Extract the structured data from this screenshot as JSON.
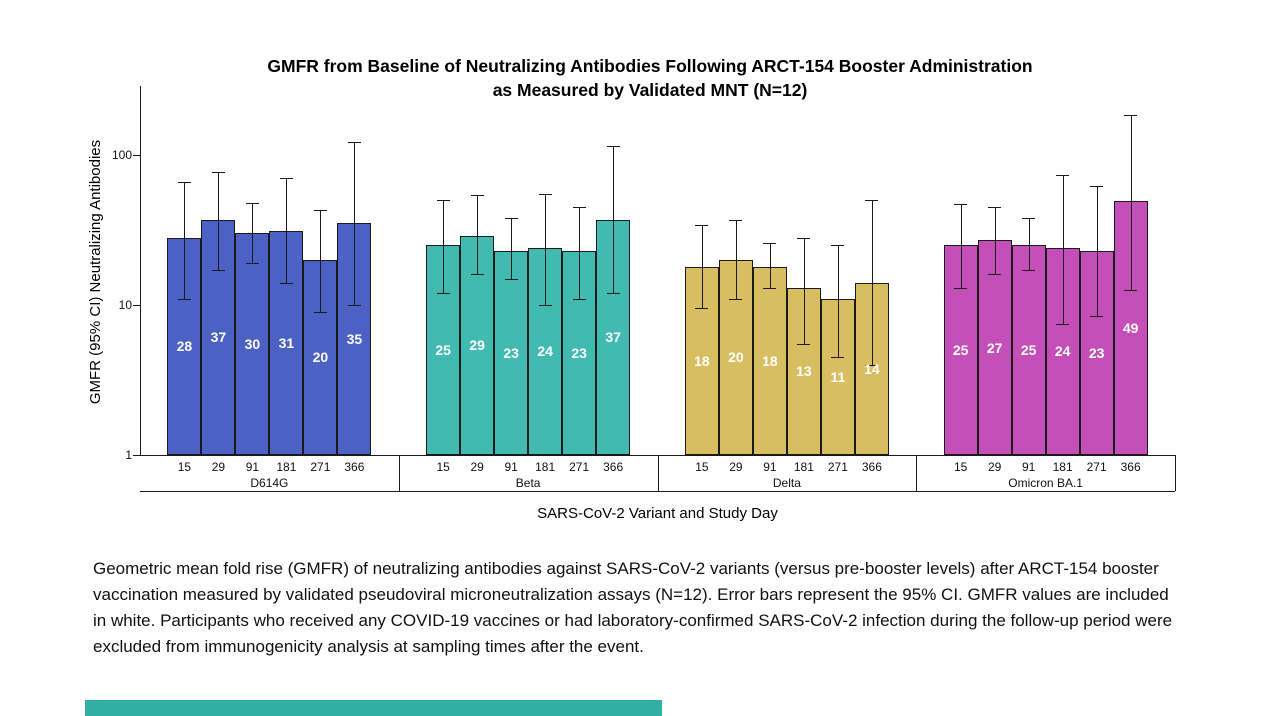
{
  "title": {
    "line1": "GMFR from Baseline of Neutralizing Antibodies Following ARCT-154 Booster Administration",
    "line2": "as Measured by Validated MNT (N=12)"
  },
  "chart_data": {
    "type": "bar",
    "scale": "log",
    "title": "GMFR from Baseline of Neutralizing Antibodies Following ARCT-154 Booster Administration as Measured by Validated MNT (N=12)",
    "ylabel": "GMFR (95% CI) Neutralizing Antibodies",
    "xlabel": "SARS-CoV-2 Variant and Study Day",
    "y_ticks": [
      1,
      10,
      100
    ],
    "ylim": [
      1,
      230
    ],
    "grid": false,
    "legend": "none",
    "days": [
      "15",
      "29",
      "91",
      "181",
      "271",
      "366"
    ],
    "bar_label_color": "#ffffff",
    "groups": [
      {
        "variant": "D614G",
        "color": "#4C61C4",
        "values": [
          28,
          37,
          30,
          31,
          20,
          35
        ],
        "ci_low": [
          11,
          17,
          19,
          14,
          9,
          10
        ],
        "ci_high": [
          66,
          77,
          48,
          70,
          43,
          122
        ]
      },
      {
        "variant": "Beta",
        "color": "#41BAB1",
        "values": [
          25,
          29,
          23,
          24,
          23,
          37
        ],
        "ci_low": [
          12,
          16,
          15,
          10,
          11,
          12
        ],
        "ci_high": [
          50,
          54,
          38,
          55,
          45,
          115
        ]
      },
      {
        "variant": "Delta",
        "color": "#D7BE60",
        "values": [
          18,
          20,
          18,
          13,
          11,
          14
        ],
        "ci_low": [
          9.5,
          11,
          13,
          5.5,
          4.5,
          4
        ],
        "ci_high": [
          34,
          37,
          26,
          28,
          25,
          50
        ]
      },
      {
        "variant": "Omicron BA.1",
        "color": "#C44FB8",
        "values": [
          25,
          27,
          25,
          24,
          23,
          49
        ],
        "ci_low": [
          13,
          16,
          17,
          7.5,
          8.5,
          12.5
        ],
        "ci_high": [
          47,
          45,
          38,
          74,
          62,
          185
        ]
      }
    ]
  },
  "caption": "Geometric mean fold rise (GMFR) of neutralizing antibodies against SARS-CoV-2 variants (versus pre-booster levels) after ARCT-154 booster vaccination measured by validated pseudoviral microneutralization assays (N=12). Error bars represent the 95% CI. GMFR values are included in white. Participants who received any COVID-19 vaccines or had laboratory-confirmed SARS-CoV-2 infection during the follow-up period were excluded from immunogenicity analysis at sampling times after the event.",
  "colors": {
    "footer_bar": "#31AFA6",
    "axis": "#1a1a1a"
  }
}
